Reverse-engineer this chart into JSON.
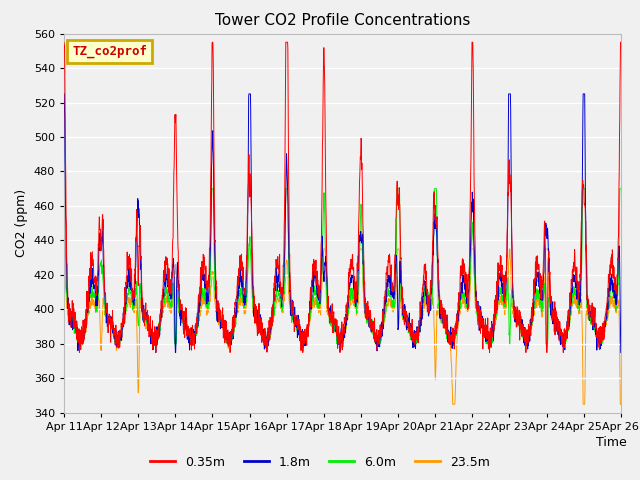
{
  "title": "Tower CO2 Profile Concentrations",
  "xlabel": "Time",
  "ylabel": "CO2 (ppm)",
  "ylim": [
    340,
    560
  ],
  "yticks": [
    340,
    360,
    380,
    400,
    420,
    440,
    460,
    480,
    500,
    520,
    540,
    560
  ],
  "legend_label": "TZ_co2prof",
  "series_labels": [
    "0.35m",
    "1.8m",
    "6.0m",
    "23.5m"
  ],
  "series_colors": [
    "#ff0000",
    "#0000cc",
    "#00ee00",
    "#ff9900"
  ],
  "plot_bg_color": "#f0f0f0",
  "fig_bg_color": "#f0f0f0",
  "date_labels": [
    "Apr 11",
    "Apr 12",
    "Apr 13",
    "Apr 14",
    "Apr 15",
    "Apr 16",
    "Apr 17",
    "Apr 18",
    "Apr 19",
    "Apr 20",
    "Apr 21",
    "Apr 22",
    "Apr 23",
    "Apr 24",
    "Apr 25",
    "Apr 26"
  ],
  "n_days": 15,
  "seed": 123
}
